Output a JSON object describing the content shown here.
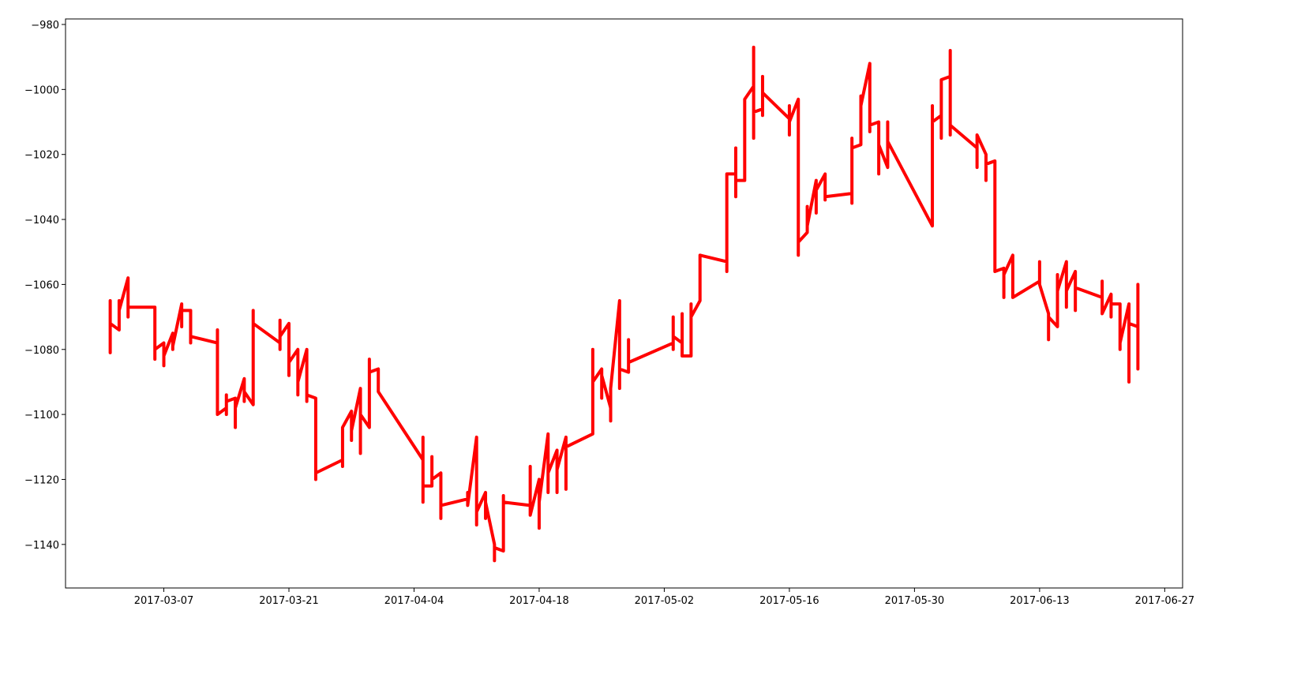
{
  "chart_data": {
    "type": "line",
    "x": [
      "2017-03-01",
      "2017-03-01",
      "2017-03-01",
      "2017-03-01",
      "2017-03-02",
      "2017-03-02",
      "2017-03-02",
      "2017-03-02",
      "2017-03-03",
      "2017-03-03",
      "2017-03-03",
      "2017-03-03",
      "2017-03-06",
      "2017-03-06",
      "2017-03-06",
      "2017-03-07",
      "2017-03-07",
      "2017-03-07",
      "2017-03-08",
      "2017-03-08",
      "2017-03-08",
      "2017-03-09",
      "2017-03-09",
      "2017-03-09",
      "2017-03-10",
      "2017-03-10",
      "2017-03-10",
      "2017-03-13",
      "2017-03-13",
      "2017-03-13",
      "2017-03-13",
      "2017-03-14",
      "2017-03-14",
      "2017-03-14",
      "2017-03-14",
      "2017-03-15",
      "2017-03-15",
      "2017-03-15",
      "2017-03-16",
      "2017-03-16",
      "2017-03-16",
      "2017-03-17",
      "2017-03-17",
      "2017-03-17",
      "2017-03-20",
      "2017-03-20",
      "2017-03-20",
      "2017-03-20",
      "2017-03-21",
      "2017-03-21",
      "2017-03-21",
      "2017-03-22",
      "2017-03-22",
      "2017-03-22",
      "2017-03-23",
      "2017-03-23",
      "2017-03-23",
      "2017-03-24",
      "2017-03-24",
      "2017-03-24",
      "2017-03-27",
      "2017-03-27",
      "2017-03-27",
      "2017-03-28",
      "2017-03-28",
      "2017-03-28",
      "2017-03-29",
      "2017-03-29",
      "2017-03-29",
      "2017-03-30",
      "2017-03-30",
      "2017-03-30",
      "2017-03-31",
      "2017-03-31",
      "2017-04-05",
      "2017-04-05",
      "2017-04-05",
      "2017-04-05",
      "2017-04-06",
      "2017-04-06",
      "2017-04-06",
      "2017-04-07",
      "2017-04-07",
      "2017-04-07",
      "2017-04-10",
      "2017-04-10",
      "2017-04-10",
      "2017-04-11",
      "2017-04-11",
      "2017-04-11",
      "2017-04-12",
      "2017-04-12",
      "2017-04-12",
      "2017-04-13",
      "2017-04-13",
      "2017-04-13",
      "2017-04-14",
      "2017-04-14",
      "2017-04-14",
      "2017-04-17",
      "2017-04-17",
      "2017-04-17",
      "2017-04-18",
      "2017-04-18",
      "2017-04-18",
      "2017-04-19",
      "2017-04-19",
      "2017-04-19",
      "2017-04-20",
      "2017-04-20",
      "2017-04-20",
      "2017-04-21",
      "2017-04-21",
      "2017-04-21",
      "2017-04-24",
      "2017-04-24",
      "2017-04-24",
      "2017-04-25",
      "2017-04-25",
      "2017-04-25",
      "2017-04-26",
      "2017-04-26",
      "2017-04-26",
      "2017-04-27",
      "2017-04-27",
      "2017-04-27",
      "2017-04-28",
      "2017-04-28",
      "2017-04-28",
      "2017-05-03",
      "2017-05-03",
      "2017-05-03",
      "2017-05-03",
      "2017-05-04",
      "2017-05-04",
      "2017-05-04",
      "2017-05-05",
      "2017-05-05",
      "2017-05-05",
      "2017-05-06",
      "2017-05-06",
      "2017-05-06",
      "2017-05-09",
      "2017-05-09",
      "2017-05-09",
      "2017-05-09",
      "2017-05-10",
      "2017-05-10",
      "2017-05-10",
      "2017-05-10",
      "2017-05-11",
      "2017-05-11",
      "2017-05-11",
      "2017-05-12",
      "2017-05-12",
      "2017-05-12",
      "2017-05-12",
      "2017-05-13",
      "2017-05-13",
      "2017-05-13",
      "2017-05-13",
      "2017-05-16",
      "2017-05-16",
      "2017-05-16",
      "2017-05-16",
      "2017-05-17",
      "2017-05-17",
      "2017-05-17",
      "2017-05-17",
      "2017-05-18",
      "2017-05-18",
      "2017-05-18",
      "2017-05-19",
      "2017-05-19",
      "2017-05-19",
      "2017-05-20",
      "2017-05-20",
      "2017-05-20",
      "2017-05-23",
      "2017-05-23",
      "2017-05-23",
      "2017-05-23",
      "2017-05-24",
      "2017-05-24",
      "2017-05-24",
      "2017-05-24",
      "2017-05-25",
      "2017-05-25",
      "2017-05-25",
      "2017-05-26",
      "2017-05-26",
      "2017-05-26",
      "2017-05-27",
      "2017-05-27",
      "2017-05-27",
      "2017-06-01",
      "2017-06-01",
      "2017-06-01",
      "2017-06-01",
      "2017-06-02",
      "2017-06-02",
      "2017-06-02",
      "2017-06-03",
      "2017-06-03",
      "2017-06-03",
      "2017-06-03",
      "2017-06-06",
      "2017-06-06",
      "2017-06-06",
      "2017-06-07",
      "2017-06-07",
      "2017-06-07",
      "2017-06-08",
      "2017-06-08",
      "2017-06-08",
      "2017-06-09",
      "2017-06-09",
      "2017-06-09",
      "2017-06-10",
      "2017-06-10",
      "2017-06-13",
      "2017-06-13",
      "2017-06-13",
      "2017-06-14",
      "2017-06-14",
      "2017-06-14",
      "2017-06-15",
      "2017-06-15",
      "2017-06-15",
      "2017-06-16",
      "2017-06-16",
      "2017-06-16",
      "2017-06-17",
      "2017-06-17",
      "2017-06-17",
      "2017-06-20",
      "2017-06-20",
      "2017-06-20",
      "2017-06-21",
      "2017-06-21",
      "2017-06-21",
      "2017-06-22",
      "2017-06-22",
      "2017-06-22",
      "2017-06-23",
      "2017-06-23",
      "2017-06-23",
      "2017-06-24",
      "2017-06-24",
      "2017-06-24",
      "2017-06-24"
    ],
    "series": [
      {
        "color": "#ff0000",
        "values": [
          -1065,
          -1081,
          -1070,
          -1072,
          -1074,
          -1065,
          -1072,
          -1068,
          -1058,
          -1070,
          -1064,
          -1067,
          -1067,
          -1083,
          -1080,
          -1078,
          -1085,
          -1082,
          -1075,
          -1080,
          -1079,
          -1066,
          -1073,
          -1068,
          -1068,
          -1078,
          -1076,
          -1078,
          -1074,
          -1090,
          -1100,
          -1098,
          -1094,
          -1100,
          -1096,
          -1095,
          -1104,
          -1098,
          -1089,
          -1096,
          -1093,
          -1097,
          -1068,
          -1072,
          -1078,
          -1071,
          -1080,
          -1076,
          -1072,
          -1088,
          -1084,
          -1080,
          -1094,
          -1090,
          -1080,
          -1096,
          -1094,
          -1095,
          -1120,
          -1118,
          -1114,
          -1116,
          -1104,
          -1099,
          -1108,
          -1105,
          -1092,
          -1112,
          -1100,
          -1104,
          -1083,
          -1087,
          -1086,
          -1093,
          -1114,
          -1107,
          -1127,
          -1122,
          -1122,
          -1113,
          -1120,
          -1118,
          -1132,
          -1128,
          -1126,
          -1124,
          -1128,
          -1107,
          -1134,
          -1130,
          -1124,
          -1132,
          -1127,
          -1140,
          -1145,
          -1141,
          -1142,
          -1125,
          -1127,
          -1128,
          -1116,
          -1131,
          -1120,
          -1135,
          -1127,
          -1106,
          -1124,
          -1118,
          -1111,
          -1124,
          -1117,
          -1107,
          -1123,
          -1110,
          -1106,
          -1080,
          -1090,
          -1086,
          -1095,
          -1088,
          -1098,
          -1102,
          -1092,
          -1065,
          -1092,
          -1086,
          -1087,
          -1077,
          -1084,
          -1078,
          -1070,
          -1080,
          -1076,
          -1078,
          -1069,
          -1082,
          -1082,
          -1066,
          -1070,
          -1065,
          -1057,
          -1051,
          -1053,
          -1056,
          -1040,
          -1026,
          -1026,
          -1018,
          -1033,
          -1028,
          -1028,
          -1022,
          -1003,
          -999,
          -987,
          -1015,
          -1007,
          -1006,
          -996,
          -1008,
          -1001,
          -1009,
          -1005,
          -1014,
          -1010,
          -1003,
          -1030,
          -1051,
          -1047,
          -1044,
          -1036,
          -1042,
          -1028,
          -1038,
          -1031,
          -1026,
          -1034,
          -1033,
          -1032,
          -1035,
          -1015,
          -1018,
          -1017,
          -1002,
          -1012,
          -1005,
          -992,
          -1013,
          -1011,
          -1010,
          -1026,
          -1017,
          -1024,
          -1010,
          -1016,
          -1042,
          -1020,
          -1005,
          -1010,
          -1008,
          -1015,
          -997,
          -996,
          -988,
          -1014,
          -1011,
          -1018,
          -1024,
          -1014,
          -1020,
          -1028,
          -1023,
          -1022,
          -1040,
          -1056,
          -1055,
          -1064,
          -1057,
          -1051,
          -1064,
          -1059,
          -1053,
          -1060,
          -1069,
          -1077,
          -1070,
          -1073,
          -1057,
          -1062,
          -1053,
          -1067,
          -1062,
          -1056,
          -1068,
          -1061,
          -1064,
          -1059,
          -1069,
          -1063,
          -1070,
          -1066,
          -1066,
          -1080,
          -1078,
          -1066,
          -1090,
          -1072,
          -1073,
          -1060,
          -1086,
          -1077
        ]
      }
    ],
    "xlim": [
      "2017-02-24",
      "2017-06-29"
    ],
    "xticks": [
      "2017-03-07",
      "2017-03-21",
      "2017-04-04",
      "2017-04-18",
      "2017-05-02",
      "2017-05-16",
      "2017-05-30",
      "2017-06-13",
      "2017-06-27"
    ],
    "ylim": [
      -1153.4,
      -978.3
    ],
    "yticks": [
      {
        "value": -1140,
        "label": "−1140"
      },
      {
        "value": -1120,
        "label": "−1120"
      },
      {
        "value": -1100,
        "label": "−1100"
      },
      {
        "value": -1080,
        "label": "−1080"
      },
      {
        "value": -1060,
        "label": "−1060"
      },
      {
        "value": -1040,
        "label": "−1040"
      },
      {
        "value": -1020,
        "label": "−1020"
      },
      {
        "value": -1000,
        "label": "−1000"
      },
      {
        "value": -980,
        "label": "−980"
      }
    ]
  }
}
